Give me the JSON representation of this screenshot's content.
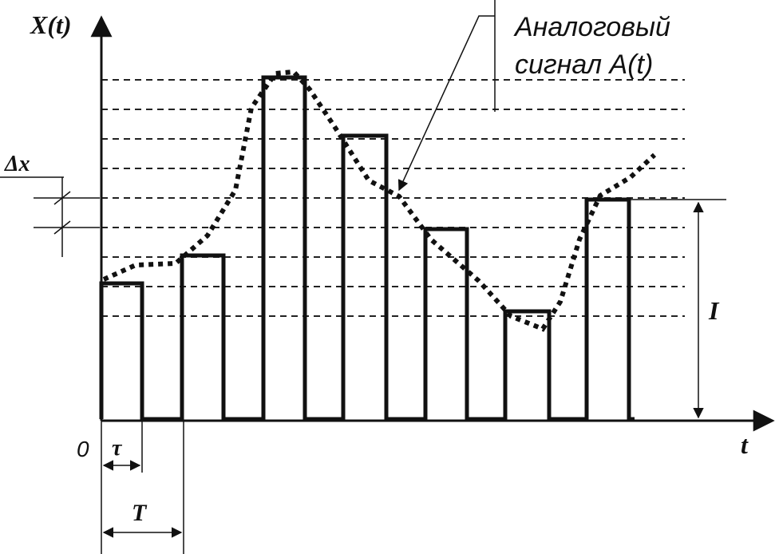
{
  "axes": {
    "y_label": "X(t)",
    "x_label": "t",
    "origin": "0"
  },
  "annotations": {
    "signal_line1": "Аналоговый",
    "signal_line2": "сигнал A(t)",
    "step": "Δx",
    "amplitude": "I",
    "pulse_width": "τ",
    "period": "T"
  }
}
